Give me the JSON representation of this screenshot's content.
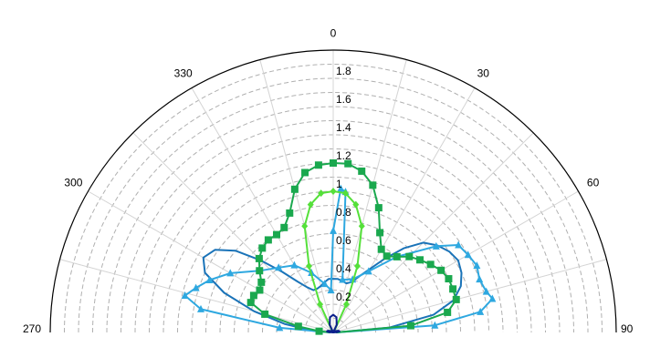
{
  "chart_data": {
    "type": "polar-line",
    "angle_ticks": [
      "270",
      "300",
      "330",
      "0",
      "30",
      "60",
      "90"
    ],
    "radial_ticks": [
      "0.2",
      "0.4",
      "0.6",
      "0.8",
      "1",
      "1.2",
      "1.4",
      "1.6",
      "1.8"
    ],
    "rlim": [
      0,
      2
    ],
    "theta_range_deg": [
      -90,
      90
    ],
    "theta_zero": "top",
    "theta_direction": "clockwise",
    "grid": true,
    "series": [
      {
        "color": "#1a73b8",
        "marker": "none",
        "points": [
          [
            -90,
            0.02
          ],
          [
            -85,
            0.15
          ],
          [
            -80,
            0.35
          ],
          [
            -75,
            0.58
          ],
          [
            -70,
            0.82
          ],
          [
            -65,
            1.0
          ],
          [
            -60,
            1.06
          ],
          [
            -55,
            1.02
          ],
          [
            -50,
            0.9
          ],
          [
            -45,
            0.72
          ],
          [
            -40,
            0.56
          ],
          [
            -35,
            0.44
          ],
          [
            -30,
            0.37
          ],
          [
            -25,
            0.33
          ],
          [
            -20,
            0.33
          ],
          [
            -15,
            0.34
          ],
          [
            -10,
            0.36
          ],
          [
            -5,
            0.38
          ],
          [
            0,
            0.38
          ],
          [
            5,
            0.38
          ],
          [
            10,
            0.37
          ],
          [
            15,
            0.36
          ],
          [
            20,
            0.38
          ],
          [
            25,
            0.44
          ],
          [
            30,
            0.52
          ],
          [
            35,
            0.64
          ],
          [
            40,
            0.78
          ],
          [
            45,
            0.9
          ],
          [
            50,
            0.96
          ],
          [
            55,
            1.0
          ],
          [
            60,
            1.02
          ],
          [
            65,
            1.0
          ],
          [
            70,
            0.96
          ],
          [
            75,
            0.88
          ],
          [
            80,
            0.72
          ],
          [
            85,
            0.4
          ],
          [
            90,
            0.02
          ]
        ]
      },
      {
        "color": "#2ea8e0",
        "marker": "triangle",
        "points": [
          [
            -90,
            0.02
          ],
          [
            -85,
            0.38
          ],
          [
            -80,
            0.95
          ],
          [
            -76,
            1.08
          ],
          [
            -72,
            1.02
          ],
          [
            -67,
            0.95
          ],
          [
            -60,
            0.84
          ],
          [
            -50,
            0.68
          ],
          [
            -40,
            0.6
          ],
          [
            -30,
            0.55
          ],
          [
            -20,
            0.45
          ],
          [
            -10,
            0.35
          ],
          [
            -3,
            0.3
          ],
          [
            0,
            0.72
          ],
          [
            3,
            1.02
          ],
          [
            5,
            1.0
          ],
          [
            10,
            0.38
          ],
          [
            20,
            0.4
          ],
          [
            30,
            0.5
          ],
          [
            40,
            0.7
          ],
          [
            50,
            0.95
          ],
          [
            55,
            1.08
          ],
          [
            60,
            1.1
          ],
          [
            65,
            1.12
          ],
          [
            70,
            1.1
          ],
          [
            75,
            1.12
          ],
          [
            78,
            1.15
          ],
          [
            82,
            1.05
          ],
          [
            86,
            0.72
          ],
          [
            90,
            0.02
          ]
        ]
      },
      {
        "color": "#1aa84e",
        "marker": "square",
        "points": [
          [
            -90,
            0.02
          ],
          [
            -85,
            0.1
          ],
          [
            -80,
            0.25
          ],
          [
            -75,
            0.5
          ],
          [
            -70,
            0.62
          ],
          [
            -65,
            0.62
          ],
          [
            -60,
            0.6
          ],
          [
            -55,
            0.62
          ],
          [
            -50,
            0.68
          ],
          [
            -45,
            0.74
          ],
          [
            -40,
            0.78
          ],
          [
            -35,
            0.8
          ],
          [
            -30,
            0.8
          ],
          [
            -25,
            0.82
          ],
          [
            -20,
            0.9
          ],
          [
            -15,
            1.05
          ],
          [
            -10,
            1.15
          ],
          [
            -5,
            1.19
          ],
          [
            0,
            1.2
          ],
          [
            5,
            1.2
          ],
          [
            10,
            1.16
          ],
          [
            15,
            1.08
          ],
          [
            20,
            0.94
          ],
          [
            25,
            0.78
          ],
          [
            30,
            0.68
          ],
          [
            35,
            0.66
          ],
          [
            40,
            0.7
          ],
          [
            45,
            0.76
          ],
          [
            50,
            0.8
          ],
          [
            55,
            0.84
          ],
          [
            60,
            0.88
          ],
          [
            65,
            0.9
          ],
          [
            70,
            0.9
          ],
          [
            75,
            0.9
          ],
          [
            80,
            0.82
          ],
          [
            85,
            0.55
          ],
          [
            90,
            0.02
          ]
        ]
      },
      {
        "color": "#55e03a",
        "marker": "diamond",
        "points": [
          [
            -90,
            0.0
          ],
          [
            -30,
            0.02
          ],
          [
            -25,
            0.22
          ],
          [
            -20,
            0.5
          ],
          [
            -15,
            0.78
          ],
          [
            -10,
            0.92
          ],
          [
            -5,
            0.99
          ],
          [
            0,
            1.0
          ],
          [
            5,
            0.99
          ],
          [
            10,
            0.92
          ],
          [
            15,
            0.78
          ],
          [
            20,
            0.5
          ],
          [
            25,
            0.22
          ],
          [
            30,
            0.02
          ],
          [
            90,
            0.0
          ]
        ]
      },
      {
        "color": "#0b1f8c",
        "marker": "none",
        "points": [
          [
            -90,
            0.0
          ],
          [
            -85,
            0.03
          ],
          [
            -80,
            0.045
          ],
          [
            -72,
            0.04
          ],
          [
            -62,
            0.022
          ],
          [
            -55,
            0.0
          ],
          [
            -45,
            0.0
          ],
          [
            -25,
            0.06
          ],
          [
            -12,
            0.11
          ],
          [
            0,
            0.125
          ],
          [
            12,
            0.11
          ],
          [
            25,
            0.06
          ],
          [
            45,
            0.0
          ],
          [
            55,
            0.0
          ],
          [
            62,
            0.022
          ],
          [
            72,
            0.04
          ],
          [
            80,
            0.045
          ],
          [
            85,
            0.03
          ],
          [
            90,
            0.0
          ]
        ]
      }
    ]
  }
}
